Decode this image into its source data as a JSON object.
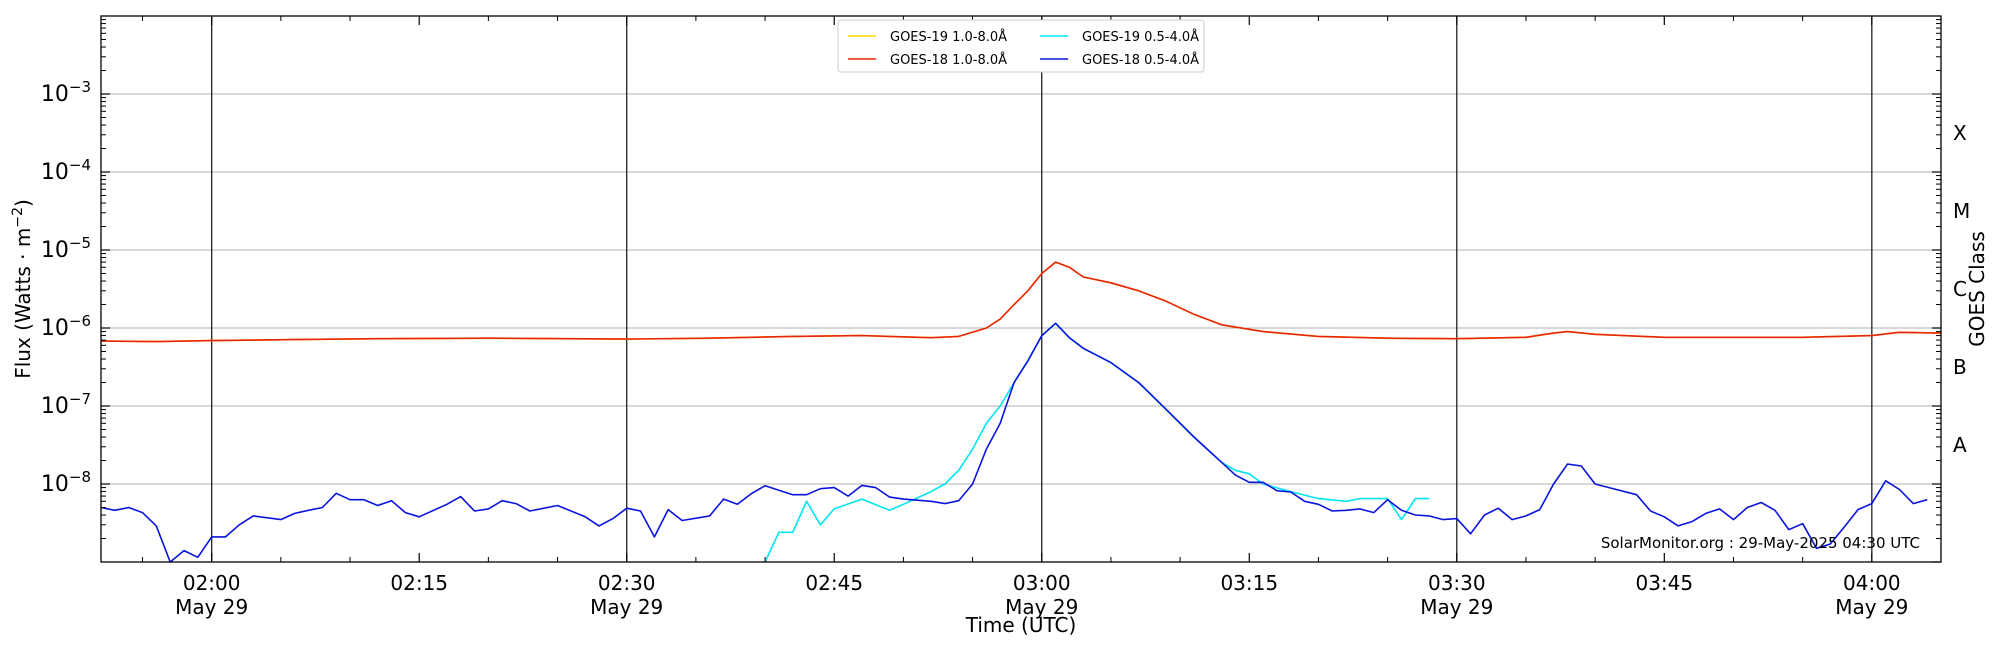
{
  "chart_data": {
    "type": "line",
    "title": "",
    "xlabel": "Time (UTC)",
    "ylabel": "Flux (Watts · m",
    "ylabel_sup": "−2",
    "ylabel_close": ")",
    "y2label": "GOES Class",
    "yscale": "log",
    "ylim": [
      1e-09,
      0.01
    ],
    "xlim": [
      "01:52",
      "04:05"
    ],
    "grid": true,
    "legend_position": "top-center",
    "annotation": "SolarMonitor.org : 29-May-2025 04:30 UTC",
    "y_ticks": [
      {
        "exp": -8,
        "base": "10",
        "sup": "−8"
      },
      {
        "exp": -7,
        "base": "10",
        "sup": "−7"
      },
      {
        "exp": -6,
        "base": "10",
        "sup": "−6"
      },
      {
        "exp": -5,
        "base": "10",
        "sup": "−5"
      },
      {
        "exp": -4,
        "base": "10",
        "sup": "−4"
      },
      {
        "exp": -3,
        "base": "10",
        "sup": "−3"
      }
    ],
    "class_labels": [
      {
        "label": "A",
        "flux": 3.16e-08
      },
      {
        "label": "B",
        "flux": 3.16e-07
      },
      {
        "label": "C",
        "flux": 3.16e-06
      },
      {
        "label": "M",
        "flux": 3.16e-05
      },
      {
        "label": "X",
        "flux": 0.000316
      }
    ],
    "x_ticks": [
      {
        "time": "02:00",
        "label": "02:00",
        "sub": "May 29",
        "vline": true
      },
      {
        "time": "02:15",
        "label": "02:15",
        "sub": "",
        "vline": false
      },
      {
        "time": "02:30",
        "label": "02:30",
        "sub": "May 29",
        "vline": true
      },
      {
        "time": "02:45",
        "label": "02:45",
        "sub": "",
        "vline": false
      },
      {
        "time": "03:00",
        "label": "03:00",
        "sub": "May 29",
        "vline": true
      },
      {
        "time": "03:15",
        "label": "03:15",
        "sub": "",
        "vline": false
      },
      {
        "time": "03:30",
        "label": "03:30",
        "sub": "May 29",
        "vline": true
      },
      {
        "time": "03:45",
        "label": "03:45",
        "sub": "",
        "vline": false
      },
      {
        "time": "04:00",
        "label": "04:00",
        "sub": "May 29",
        "vline": true
      }
    ],
    "series": [
      {
        "name": "GOES-19 1.0-8.0Å",
        "color": "#ffd700",
        "points": [
          [
            "01:52",
            6.8e-07
          ],
          [
            "01:56",
            6.7e-07
          ],
          [
            "02:00",
            6.9e-07
          ],
          [
            "02:06",
            7.1e-07
          ],
          [
            "02:12",
            7.3e-07
          ],
          [
            "02:20",
            7.4e-07
          ],
          [
            "02:30",
            7.2e-07
          ],
          [
            "02:36",
            7.4e-07
          ],
          [
            "02:42",
            7.8e-07
          ],
          [
            "02:47",
            8e-07
          ],
          [
            "02:52",
            7.5e-07
          ],
          [
            "02:54",
            7.8e-07
          ],
          [
            "02:56",
            1e-06
          ],
          [
            "02:57",
            1.3e-06
          ],
          [
            "02:58",
            2e-06
          ],
          [
            "02:59",
            3e-06
          ],
          [
            "03:00",
            5e-06
          ],
          [
            "03:01",
            7e-06
          ],
          [
            "03:02",
            6e-06
          ],
          [
            "03:03",
            4.5e-06
          ],
          [
            "03:05",
            3.8e-06
          ],
          [
            "03:07",
            3e-06
          ],
          [
            "03:09",
            2.2e-06
          ],
          [
            "03:11",
            1.5e-06
          ],
          [
            "03:13",
            1.1e-06
          ],
          [
            "03:16",
            9e-07
          ],
          [
            "03:20",
            7.8e-07
          ],
          [
            "03:25",
            7.4e-07
          ],
          [
            "03:30",
            7.3e-07
          ],
          [
            "03:35",
            7.6e-07
          ],
          [
            "03:37",
            8.6e-07
          ],
          [
            "03:38",
            9e-07
          ],
          [
            "03:40",
            8.3e-07
          ],
          [
            "03:45",
            7.6e-07
          ],
          [
            "03:50",
            7.6e-07
          ],
          [
            "03:55",
            7.6e-07
          ],
          [
            "04:00",
            8e-07
          ],
          [
            "04:02",
            8.8e-07
          ],
          [
            "04:05",
            8.6e-07
          ]
        ]
      },
      {
        "name": "GOES-18 1.0-8.0Å",
        "color": "#e8250a",
        "points": [
          [
            "01:52",
            6.8e-07
          ],
          [
            "01:56",
            6.7e-07
          ],
          [
            "02:00",
            6.9e-07
          ],
          [
            "02:06",
            7.1e-07
          ],
          [
            "02:12",
            7.3e-07
          ],
          [
            "02:20",
            7.4e-07
          ],
          [
            "02:30",
            7.2e-07
          ],
          [
            "02:36",
            7.4e-07
          ],
          [
            "02:42",
            7.8e-07
          ],
          [
            "02:47",
            8e-07
          ],
          [
            "02:52",
            7.5e-07
          ],
          [
            "02:54",
            7.8e-07
          ],
          [
            "02:56",
            1e-06
          ],
          [
            "02:57",
            1.3e-06
          ],
          [
            "02:58",
            2e-06
          ],
          [
            "02:59",
            3e-06
          ],
          [
            "03:00",
            5e-06
          ],
          [
            "03:01",
            7e-06
          ],
          [
            "03:02",
            6e-06
          ],
          [
            "03:03",
            4.5e-06
          ],
          [
            "03:05",
            3.8e-06
          ],
          [
            "03:07",
            3e-06
          ],
          [
            "03:09",
            2.2e-06
          ],
          [
            "03:11",
            1.5e-06
          ],
          [
            "03:13",
            1.1e-06
          ],
          [
            "03:16",
            9e-07
          ],
          [
            "03:20",
            7.8e-07
          ],
          [
            "03:25",
            7.4e-07
          ],
          [
            "03:30",
            7.3e-07
          ],
          [
            "03:35",
            7.6e-07
          ],
          [
            "03:37",
            8.6e-07
          ],
          [
            "03:38",
            9e-07
          ],
          [
            "03:40",
            8.3e-07
          ],
          [
            "03:45",
            7.6e-07
          ],
          [
            "03:50",
            7.6e-07
          ],
          [
            "03:55",
            7.6e-07
          ],
          [
            "04:00",
            8e-07
          ],
          [
            "04:02",
            8.8e-07
          ],
          [
            "04:05",
            8.6e-07
          ]
        ]
      },
      {
        "name": "GOES-19 0.5-4.0Å",
        "color": "#00e5f0",
        "points": [
          [
            "02:40",
            1e-09
          ],
          [
            "02:41",
            2.4e-09
          ],
          [
            "02:42",
            2.4e-09
          ],
          [
            "02:43",
            6e-09
          ],
          [
            "02:44",
            3e-09
          ],
          [
            "02:45",
            4.8e-09
          ],
          [
            "02:47",
            6.4e-09
          ],
          [
            "02:49",
            4.6e-09
          ],
          [
            "02:50",
            5.5e-09
          ],
          [
            "02:52",
            8e-09
          ],
          [
            "02:53",
            1e-08
          ],
          [
            "02:54",
            1.5e-08
          ],
          [
            "02:55",
            2.8e-08
          ],
          [
            "02:56",
            6e-08
          ],
          [
            "02:57",
            1e-07
          ],
          [
            "02:58",
            2e-07
          ],
          [
            "02:59",
            3.8e-07
          ],
          [
            "03:00",
            8e-07
          ],
          [
            "03:01",
            1.15e-06
          ],
          [
            "03:02",
            7.5e-07
          ],
          [
            "03:03",
            5.5e-07
          ],
          [
            "03:05",
            3.6e-07
          ],
          [
            "03:07",
            2e-07
          ],
          [
            "03:09",
            9e-08
          ],
          [
            "03:11",
            4e-08
          ],
          [
            "03:13",
            1.9e-08
          ],
          [
            "03:14",
            1.5e-08
          ],
          [
            "03:15",
            1.35e-08
          ],
          [
            "03:16",
            1e-08
          ],
          [
            "03:18",
            8e-09
          ],
          [
            "03:20",
            6.5e-09
          ],
          [
            "03:22",
            6e-09
          ],
          [
            "03:23",
            6.5e-09
          ],
          [
            "03:25",
            6.5e-09
          ],
          [
            "03:26",
            3.5e-09
          ],
          [
            "03:27",
            6.5e-09
          ],
          [
            "03:28",
            6.5e-09
          ]
        ]
      },
      {
        "name": "GOES-18 0.5-4.0Å",
        "color": "#0a14dc",
        "points": [
          [
            "01:52",
            5e-09
          ],
          [
            "01:53",
            4.6e-09
          ],
          [
            "01:54",
            5e-09
          ],
          [
            "01:55",
            4.3e-09
          ],
          [
            "01:56",
            2.9e-09
          ],
          [
            "01:57",
            1e-09
          ],
          [
            "01:58",
            1.4e-09
          ],
          [
            "01:59",
            1.15e-09
          ],
          [
            "02:00",
            2.1e-09
          ],
          [
            "02:01",
            2.1e-09
          ],
          [
            "02:02",
            3e-09
          ],
          [
            "02:03",
            3.9e-09
          ],
          [
            "02:05",
            3.5e-09
          ],
          [
            "02:06",
            4.2e-09
          ],
          [
            "02:07",
            4.6e-09
          ],
          [
            "02:08",
            5e-09
          ],
          [
            "02:09",
            7.6e-09
          ],
          [
            "02:10",
            6.3e-09
          ],
          [
            "02:11",
            6.3e-09
          ],
          [
            "02:12",
            5.3e-09
          ],
          [
            "02:13",
            6.1e-09
          ],
          [
            "02:14",
            4.3e-09
          ],
          [
            "02:15",
            3.8e-09
          ],
          [
            "02:17",
            5.5e-09
          ],
          [
            "02:18",
            6.9e-09
          ],
          [
            "02:19",
            4.5e-09
          ],
          [
            "02:20",
            4.8e-09
          ],
          [
            "02:21",
            6.1e-09
          ],
          [
            "02:22",
            5.6e-09
          ],
          [
            "02:23",
            4.5e-09
          ],
          [
            "02:25",
            5.3e-09
          ],
          [
            "02:27",
            3.8e-09
          ],
          [
            "02:28",
            2.9e-09
          ],
          [
            "02:29",
            3.6e-09
          ],
          [
            "02:30",
            4.9e-09
          ],
          [
            "02:31",
            4.5e-09
          ],
          [
            "02:32",
            2.1e-09
          ],
          [
            "02:33",
            4.7e-09
          ],
          [
            "02:34",
            3.4e-09
          ],
          [
            "02:36",
            3.9e-09
          ],
          [
            "02:37",
            6.4e-09
          ],
          [
            "02:38",
            5.5e-09
          ],
          [
            "02:39",
            7.5e-09
          ],
          [
            "02:40",
            9.5e-09
          ],
          [
            "02:42",
            7.3e-09
          ],
          [
            "02:43",
            7.3e-09
          ],
          [
            "02:44",
            8.7e-09
          ],
          [
            "02:45",
            9e-09
          ],
          [
            "02:46",
            7e-09
          ],
          [
            "02:47",
            9.6e-09
          ],
          [
            "02:48",
            9e-09
          ],
          [
            "02:49",
            6.8e-09
          ],
          [
            "02:50",
            6.4e-09
          ],
          [
            "02:52",
            6e-09
          ],
          [
            "02:53",
            5.6e-09
          ],
          [
            "02:54",
            6.1e-09
          ],
          [
            "02:55",
            1e-08
          ],
          [
            "02:56",
            2.8e-08
          ],
          [
            "02:57",
            6e-08
          ],
          [
            "02:58",
            2e-07
          ],
          [
            "02:59",
            3.8e-07
          ],
          [
            "03:00",
            8e-07
          ],
          [
            "03:01",
            1.15e-06
          ],
          [
            "03:02",
            7.5e-07
          ],
          [
            "03:03",
            5.5e-07
          ],
          [
            "03:05",
            3.6e-07
          ],
          [
            "03:07",
            2e-07
          ],
          [
            "03:09",
            9e-08
          ],
          [
            "03:11",
            4e-08
          ],
          [
            "03:13",
            1.9e-08
          ],
          [
            "03:14",
            1.3e-08
          ],
          [
            "03:15",
            1.05e-08
          ],
          [
            "03:16",
            1.05e-08
          ],
          [
            "03:17",
            8.2e-09
          ],
          [
            "03:18",
            7.9e-09
          ],
          [
            "03:19",
            6e-09
          ],
          [
            "03:20",
            5.5e-09
          ],
          [
            "03:21",
            4.5e-09
          ],
          [
            "03:22",
            4.6e-09
          ],
          [
            "03:23",
            4.8e-09
          ],
          [
            "03:24",
            4.3e-09
          ],
          [
            "03:25",
            6.3e-09
          ],
          [
            "03:26",
            4.6e-09
          ],
          [
            "03:27",
            4e-09
          ],
          [
            "03:28",
            3.9e-09
          ],
          [
            "03:29",
            3.5e-09
          ],
          [
            "03:30",
            3.6e-09
          ],
          [
            "03:31",
            2.3e-09
          ],
          [
            "03:32",
            4e-09
          ],
          [
            "03:33",
            4.9e-09
          ],
          [
            "03:34",
            3.5e-09
          ],
          [
            "03:35",
            3.9e-09
          ],
          [
            "03:36",
            4.7e-09
          ],
          [
            "03:37",
            1e-08
          ],
          [
            "03:38",
            1.8e-08
          ],
          [
            "03:39",
            1.7e-08
          ],
          [
            "03:40",
            1e-08
          ],
          [
            "03:41",
            9e-09
          ],
          [
            "03:43",
            7.3e-09
          ],
          [
            "03:44",
            4.5e-09
          ],
          [
            "03:45",
            3.8e-09
          ],
          [
            "03:46",
            2.9e-09
          ],
          [
            "03:47",
            3.3e-09
          ],
          [
            "03:48",
            4.2e-09
          ],
          [
            "03:49",
            4.8e-09
          ],
          [
            "03:50",
            3.5e-09
          ],
          [
            "03:51",
            5e-09
          ],
          [
            "03:52",
            5.8e-09
          ],
          [
            "03:53",
            4.6e-09
          ],
          [
            "03:54",
            2.6e-09
          ],
          [
            "03:55",
            3.1e-09
          ],
          [
            "03:56",
            1.5e-09
          ],
          [
            "03:57",
            1.7e-09
          ],
          [
            "03:58",
            2.8e-09
          ],
          [
            "03:59",
            4.7e-09
          ],
          [
            "04:00",
            5.6e-09
          ],
          [
            "04:01",
            1.1e-08
          ],
          [
            "04:02",
            8.5e-09
          ],
          [
            "04:03",
            5.6e-09
          ],
          [
            "04:04",
            6.3e-09
          ]
        ]
      }
    ]
  }
}
